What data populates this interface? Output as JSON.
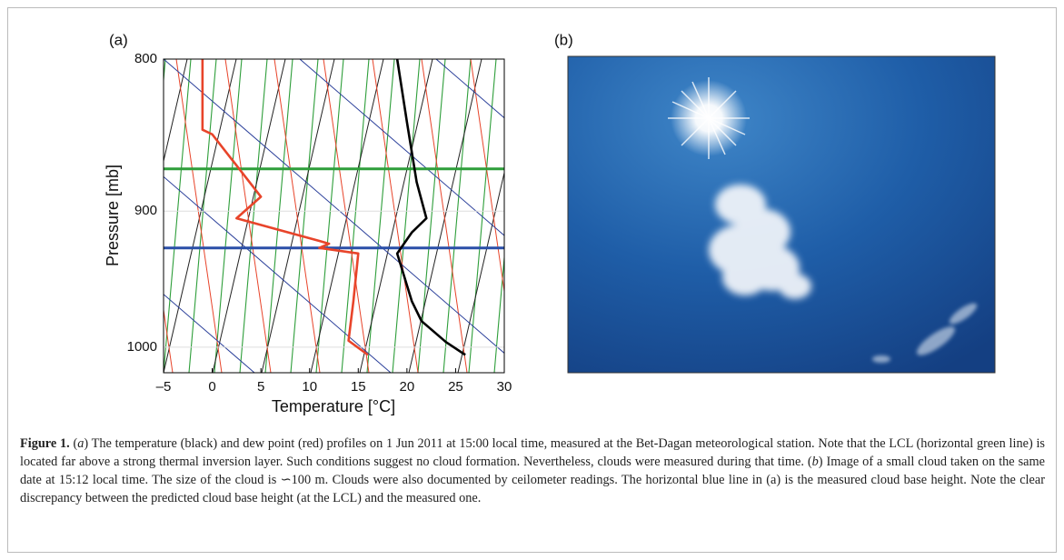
{
  "chart_data": {
    "type": "line",
    "panel_label": "(a)",
    "xlabel": "Temperature [°C]",
    "ylabel": "Pressure [mb]",
    "xlim": [
      -5,
      30
    ],
    "xticks": [
      {
        "value": -5,
        "label": "–5"
      },
      0,
      5,
      10,
      15,
      20,
      25,
      30
    ],
    "ylim": [
      800,
      1020
    ],
    "yticks": [
      800,
      900,
      1000
    ],
    "log_y": true,
    "y_inverted": true,
    "grid": true,
    "series": [
      {
        "color": "#000000",
        "x": [
          19,
          20,
          21,
          22,
          20.5,
          19.5,
          19,
          20.5,
          21.5,
          24,
          26
        ],
        "values": [
          800,
          840,
          880,
          905,
          915,
          925,
          930,
          965,
          980,
          996,
          1006
        ]
      },
      {
        "color": "#e8442a",
        "x": [
          -1,
          -1,
          0,
          5,
          2.5,
          11,
          12,
          11,
          15,
          14.5,
          14,
          16
        ],
        "values": [
          800,
          845,
          848,
          890,
          905,
          921,
          923,
          926,
          930,
          965,
          995,
          1006
        ]
      }
    ],
    "hlines": [
      {
        "value": 871,
        "color": "#2e9e3a"
      },
      {
        "value": 926,
        "color": "#2a4fa8"
      }
    ]
  },
  "photo": {
    "panel_label": "(b)"
  },
  "caption": {
    "label": "Figure 1.",
    "parts": [
      "(",
      "a",
      ") The temperature (black) and dew point (red) profiles on 1 Jun 2011 at 15:00 local time, measured at the Bet-Dagan meteorological station. Note that the LCL (horizontal green line) is located far above a strong thermal inversion layer. Such conditions suggest no cloud formation. Nevertheless, clouds were measured during that time. (",
      "b",
      ") Image of a small cloud taken on the same date at 15:12 local time. The size of the cloud is ∽100 m. Clouds were also documented by ceilometer readings. The horizontal blue line in (a) is the measured cloud base height. Note the clear discrepancy between the predicted cloud base height (at the LCL) and the measured one."
    ]
  }
}
